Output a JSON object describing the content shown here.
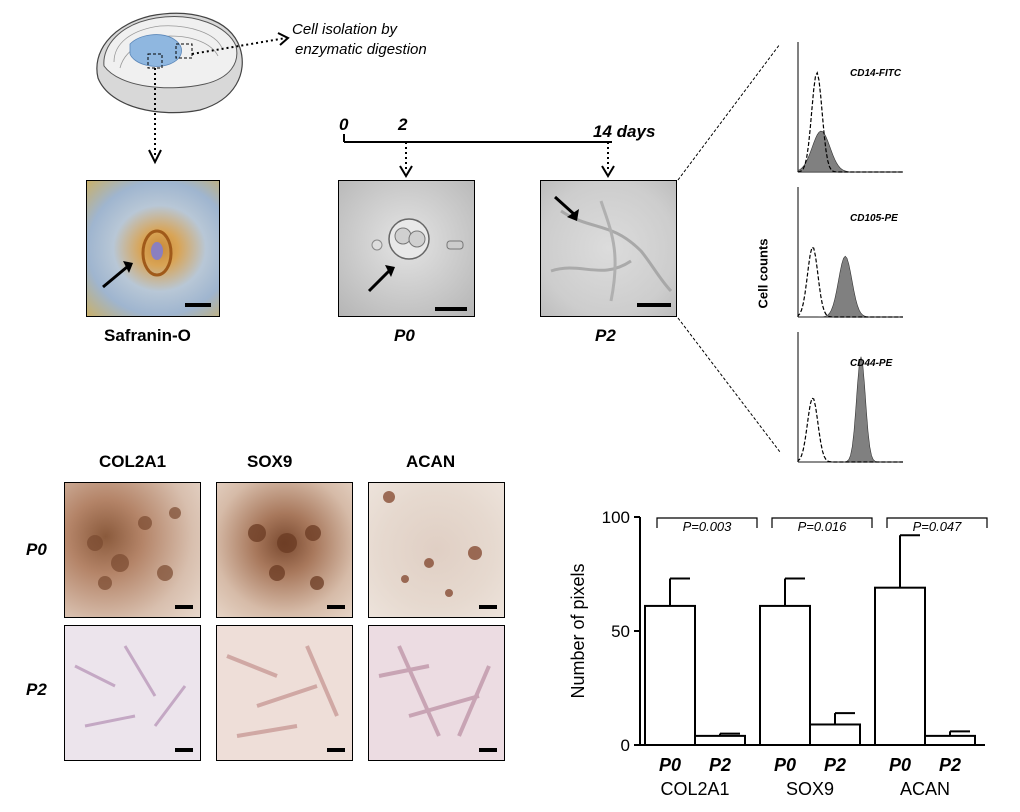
{
  "workflow": {
    "isolation_label_line1": "Cell isolation by",
    "isolation_label_line2": "enzymatic digestion",
    "safranin_label": "Safranin-O",
    "timeline": {
      "t0": "0",
      "t2": "2",
      "t14": "14",
      "unit": "days"
    },
    "p0_label": "P0",
    "p2_label": "P2"
  },
  "flow": {
    "ylabel": "Cell counts",
    "panels": [
      {
        "marker": "CD14-FITC"
      },
      {
        "marker": "CD105-PE"
      },
      {
        "marker": "CD44-PE"
      }
    ]
  },
  "ihc": {
    "columns": [
      "COL2A1",
      "SOX9",
      "ACAN"
    ],
    "rows": [
      "P0",
      "P2"
    ]
  },
  "chart_data": {
    "type": "bar",
    "groups": [
      "COL2A1",
      "SOX9",
      "ACAN"
    ],
    "bar_labels": [
      "P0",
      "P2"
    ],
    "ylabel": "Number  of pixels",
    "ylim": [
      0,
      100
    ],
    "yticks": [
      "0",
      "50",
      "100"
    ],
    "series": [
      {
        "name": "P0",
        "values": [
          61,
          61,
          69
        ],
        "errors": [
          12,
          12,
          23
        ]
      },
      {
        "name": "P2",
        "values": [
          4,
          9,
          4
        ],
        "errors": [
          1,
          5,
          2
        ]
      }
    ],
    "pvalues": [
      "P=0.003",
      "P=0.016",
      "P=0.047"
    ]
  }
}
